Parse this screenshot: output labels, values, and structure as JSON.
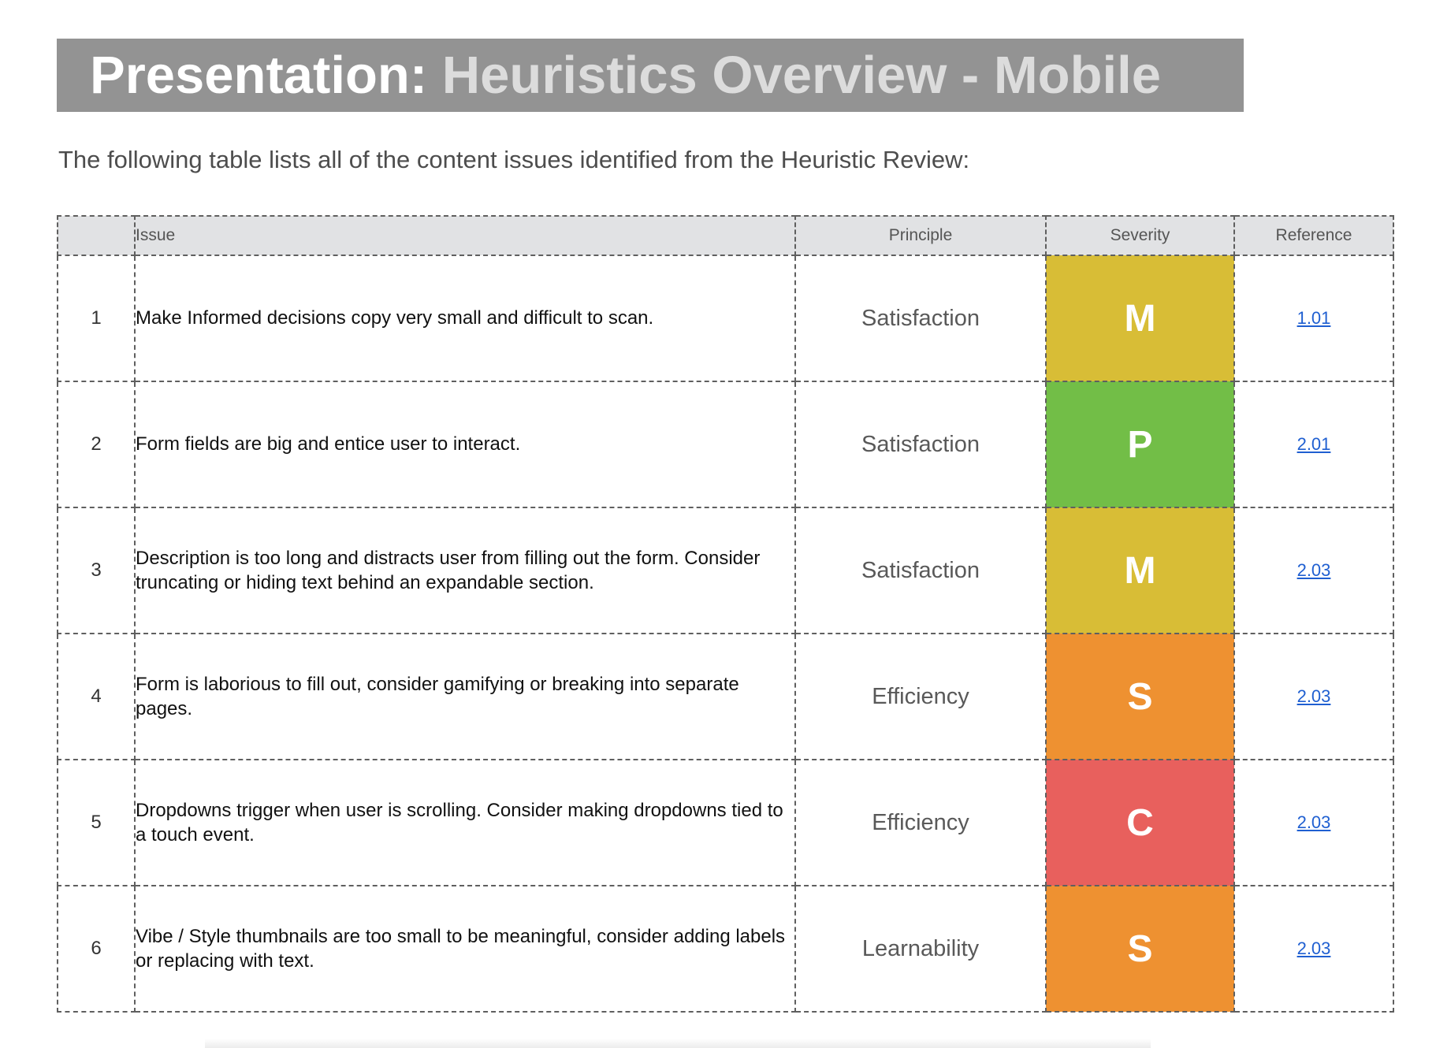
{
  "title": {
    "prefix": "Presentation:",
    "main": "Heuristics Overview - Mobile"
  },
  "intro": "The following table lists all of the content issues identified from the Heuristic Review:",
  "table": {
    "headers": {
      "number": "",
      "issue": "Issue",
      "principle": "Principle",
      "severity": "Severity",
      "reference": "Reference"
    },
    "rows": [
      {
        "num": "1",
        "issue": "Make Informed decisions copy very small and difficult to scan.",
        "principle": "Satisfaction",
        "severity": "M",
        "severity_color": "#d8bd36",
        "reference": "1.01"
      },
      {
        "num": "2",
        "issue": "Form fields are big and entice user to interact.",
        "principle": "Satisfaction",
        "severity": "P",
        "severity_color": "#72be47",
        "reference": "2.01"
      },
      {
        "num": "3",
        "issue": "Description is too long and distracts user from filling out the form. Consider truncating or hiding text behind an expandable section.",
        "principle": "Satisfaction",
        "severity": "M",
        "severity_color": "#d8bd36",
        "reference": "2.03"
      },
      {
        "num": "4",
        "issue": "Form is laborious to fill out, consider gamifying or breaking into separate pages.",
        "principle": "Efficiency",
        "severity": "S",
        "severity_color": "#ee9131",
        "reference": "2.03"
      },
      {
        "num": "5",
        "issue": "Dropdowns trigger when user is scrolling. Consider making dropdowns tied to a touch event.",
        "principle": "Efficiency",
        "severity": "C",
        "severity_color": "#e8605d",
        "reference": "2.03"
      },
      {
        "num": "6",
        "issue": "Vibe / Style thumbnails are too small to be meaningful, consider adding labels or replacing with text.",
        "principle": "Learnability",
        "severity": "S",
        "severity_color": "#ee9131",
        "reference": "2.03"
      }
    ]
  }
}
